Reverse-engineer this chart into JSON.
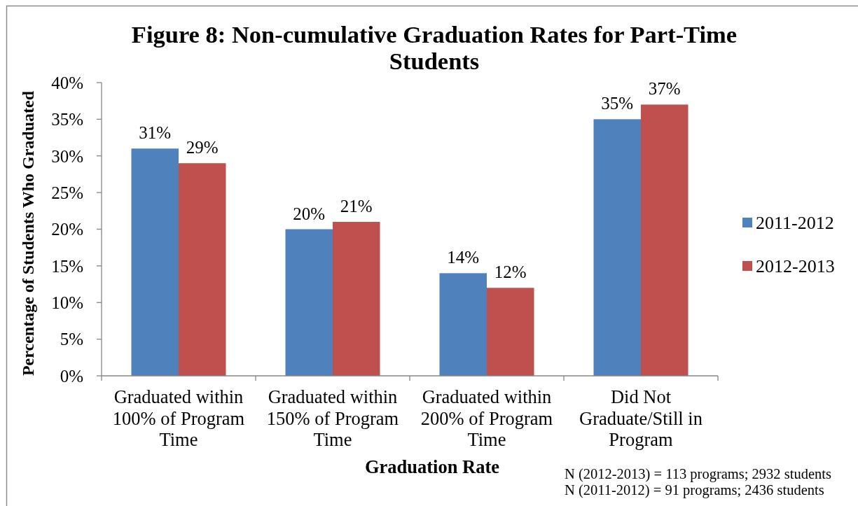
{
  "chart_data": {
    "type": "bar",
    "title": "Figure 8: Non-cumulative Graduation Rates for Part-Time Students",
    "xlabel": "Graduation Rate",
    "ylabel": "Percentage of Students Who Graduated",
    "categories": [
      "Graduated within 100% of Program Time",
      "Graduated within 150% of Program Time",
      "Graduated within 200% of Program Time",
      "Did Not Graduate/Still in Program"
    ],
    "series": [
      {
        "name": "2011-2012",
        "color": "#4f81bd",
        "values": [
          31,
          20,
          14,
          35
        ],
        "value_labels": [
          "31%",
          "20%",
          "14%",
          "35%"
        ]
      },
      {
        "name": "2012-2013",
        "color": "#c0504d",
        "values": [
          29,
          21,
          12,
          37
        ],
        "value_labels": [
          "29%",
          "21%",
          "12%",
          "37%"
        ]
      }
    ],
    "ylim": [
      0,
      40
    ],
    "yticks": [
      {
        "value": 0,
        "label": "0%"
      },
      {
        "value": 5,
        "label": "5%"
      },
      {
        "value": 10,
        "label": "10%"
      },
      {
        "value": 15,
        "label": "15%"
      },
      {
        "value": 20,
        "label": "20%"
      },
      {
        "value": 25,
        "label": "25%"
      },
      {
        "value": 30,
        "label": "30%"
      },
      {
        "value": 35,
        "label": "35%"
      },
      {
        "value": 40,
        "label": "40%"
      }
    ],
    "legend": "right",
    "annotations": [
      "N (2012-2013) = 113 programs; 2932 students",
      "N (2011-2012) = 91 programs; 2436 students"
    ]
  }
}
